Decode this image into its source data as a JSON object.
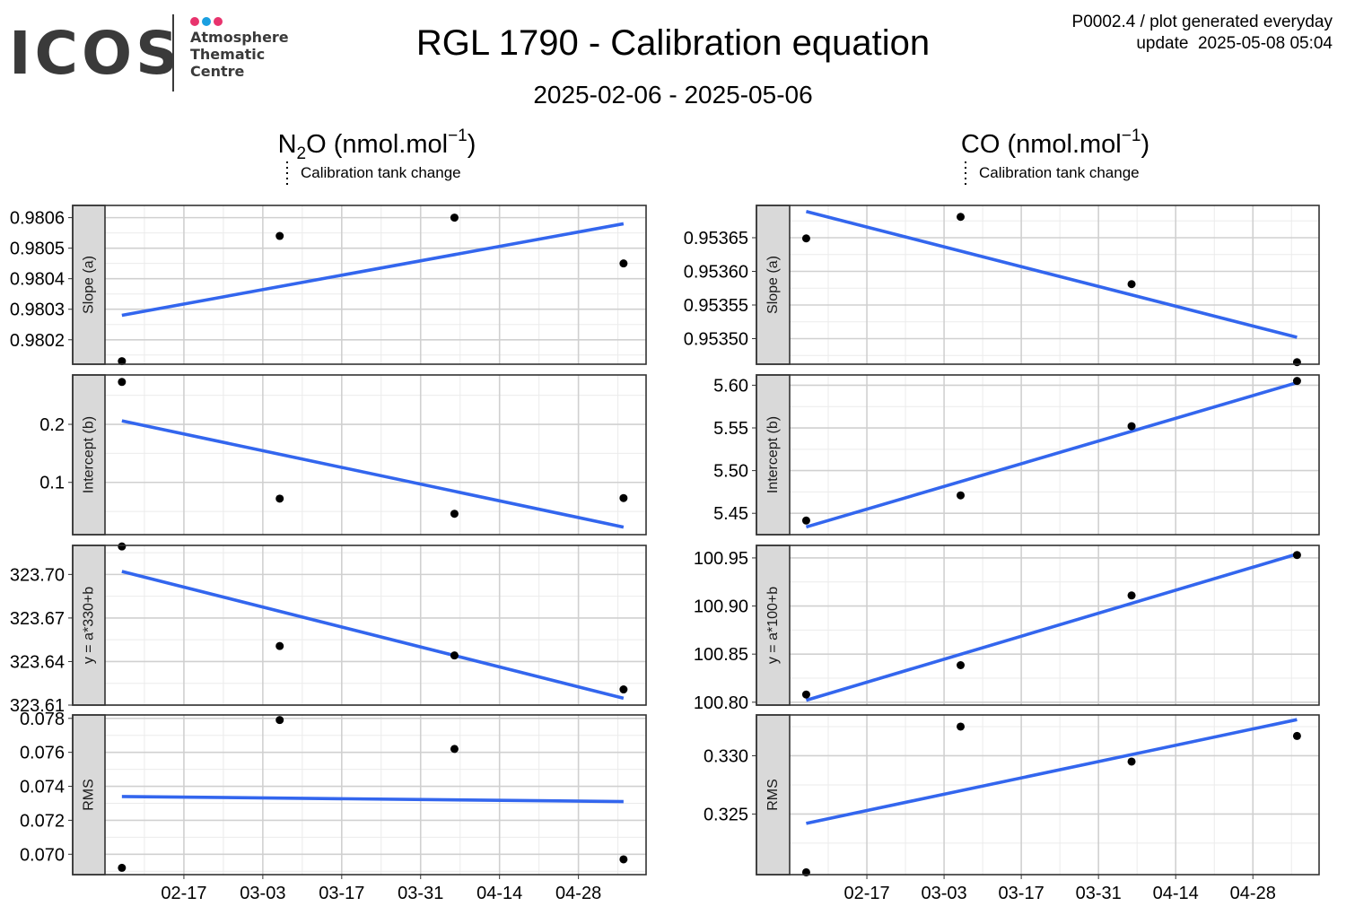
{
  "logo": {
    "text": "ICOS",
    "lines": [
      "Atmosphere",
      "Thematic",
      "Centre"
    ],
    "dot_colors": [
      "#e8336d",
      "#1a9fe0",
      "#e8336d"
    ]
  },
  "header": {
    "title": "RGL 1790 - Calibration equation",
    "subtitle": "2025-02-06 - 2025-05-06",
    "code": "P0002.4 / plot generated everyday",
    "update": "update  2025-05-08 05:04"
  },
  "colors": {
    "fit": "#3366ee",
    "point": "#000000",
    "strip": "#d9d9d9"
  },
  "chart_data": [
    {
      "type": "scatter",
      "species": "N₂O",
      "unit_text": "(nmol.mol",
      "unit_sup": "−1",
      "unit_close": ")",
      "legend": "Calibration tank change",
      "xlim": [
        "2025-02-03",
        "2025-05-10"
      ],
      "x_ticks": [
        "2025-02-17",
        "2025-03-03",
        "2025-03-17",
        "2025-03-31",
        "2025-04-14",
        "2025-04-28"
      ],
      "x_tick_labels": [
        "02-17",
        "03-03",
        "03-17",
        "03-31",
        "04-14",
        "04-28"
      ],
      "panels": [
        {
          "strip": "Slope (a)",
          "ylim": [
            0.98012,
            0.98064
          ],
          "yticks": [
            0.9802,
            0.9803,
            0.9804,
            0.9805,
            0.9806
          ],
          "ytick_labels": [
            "0.9802",
            "0.9803",
            "0.9804",
            "0.9805",
            "0.9806"
          ],
          "points": [
            [
              "2025-02-06",
              0.98013
            ],
            [
              "2025-03-06",
              0.98054
            ],
            [
              "2025-04-06",
              0.9806
            ],
            [
              "2025-05-06",
              0.98045
            ]
          ],
          "fit": [
            [
              "2025-02-06",
              0.98028
            ],
            [
              "2025-05-06",
              0.98058
            ]
          ]
        },
        {
          "strip": "Intercept (b)",
          "ylim": [
            0.01,
            0.285
          ],
          "yticks": [
            0.1,
            0.2
          ],
          "ytick_labels": [
            "0.1",
            "0.2"
          ],
          "points": [
            [
              "2025-02-06",
              0.273
            ],
            [
              "2025-03-06",
              0.072
            ],
            [
              "2025-04-06",
              0.046
            ],
            [
              "2025-05-06",
              0.073
            ]
          ],
          "fit": [
            [
              "2025-02-06",
              0.206
            ],
            [
              "2025-05-06",
              0.023
            ]
          ]
        },
        {
          "strip": "y = a*330+b",
          "ylim": [
            323.61,
            323.72
          ],
          "yticks": [
            323.61,
            323.64,
            323.67,
            323.7
          ],
          "ytick_labels": [
            "323.61",
            "323.64",
            "323.67",
            "323.70"
          ],
          "points": [
            [
              "2025-02-06",
              323.7193
            ],
            [
              "2025-03-06",
              323.6507
            ],
            [
              "2025-04-06",
              323.6442
            ],
            [
              "2025-05-06",
              323.6208
            ]
          ],
          "fit": [
            [
              "2025-02-06",
              323.7021
            ],
            [
              "2025-05-06",
              323.6147
            ]
          ]
        },
        {
          "strip": "RMS",
          "ylim": [
            0.0688,
            0.0782
          ],
          "yticks": [
            0.07,
            0.072,
            0.074,
            0.076,
            0.078
          ],
          "ytick_labels": [
            "0.070",
            "0.072",
            "0.074",
            "0.076",
            "0.078"
          ],
          "points": [
            [
              "2025-02-06",
              0.0692
            ],
            [
              "2025-03-06",
              0.0779
            ],
            [
              "2025-04-06",
              0.0762
            ],
            [
              "2025-05-06",
              0.0697
            ]
          ],
          "fit": [
            [
              "2025-02-06",
              0.0734
            ],
            [
              "2025-05-06",
              0.0731
            ]
          ]
        }
      ]
    },
    {
      "type": "scatter",
      "species": "CO",
      "unit_text": "(nmol.mol",
      "unit_sup": "−1",
      "unit_close": ")",
      "legend": "Calibration tank change",
      "xlim": [
        "2025-02-03",
        "2025-05-10"
      ],
      "x_ticks": [
        "2025-02-17",
        "2025-03-03",
        "2025-03-17",
        "2025-03-31",
        "2025-04-14",
        "2025-04-28"
      ],
      "x_tick_labels": [
        "02-17",
        "03-03",
        "03-17",
        "03-31",
        "04-14",
        "04-28"
      ],
      "panels": [
        {
          "strip": "Slope (a)",
          "ylim": [
            0.953462,
            0.953698
          ],
          "yticks": [
            0.9535,
            0.95355,
            0.9536,
            0.95365
          ],
          "ytick_labels": [
            "0.95350",
            "0.95355",
            "0.95360",
            "0.95365"
          ],
          "points": [
            [
              "2025-02-06",
              0.953649
            ],
            [
              "2025-03-06",
              0.953681
            ],
            [
              "2025-04-06",
              0.953581
            ],
            [
              "2025-05-06",
              0.953465
            ]
          ],
          "fit": [
            [
              "2025-02-06",
              0.953689
            ],
            [
              "2025-05-06",
              0.953502
            ]
          ]
        },
        {
          "strip": "Intercept (b)",
          "ylim": [
            5.425,
            5.612
          ],
          "yticks": [
            5.45,
            5.5,
            5.55,
            5.6
          ],
          "ytick_labels": [
            "5.45",
            "5.50",
            "5.55",
            "5.60"
          ],
          "points": [
            [
              "2025-02-06",
              5.4415
            ],
            [
              "2025-03-06",
              5.471
            ],
            [
              "2025-04-06",
              5.552
            ],
            [
              "2025-05-06",
              5.605
            ]
          ],
          "fit": [
            [
              "2025-02-06",
              5.434
            ],
            [
              "2025-05-06",
              5.603
            ]
          ]
        },
        {
          "strip": "y = a*100+b",
          "ylim": [
            100.797,
            100.963
          ],
          "yticks": [
            100.8,
            100.85,
            100.9,
            100.95
          ],
          "ytick_labels": [
            "100.80",
            "100.85",
            "100.90",
            "100.95"
          ],
          "points": [
            [
              "2025-02-06",
              100.808
            ],
            [
              "2025-03-06",
              100.8385
            ],
            [
              "2025-04-06",
              100.911
            ],
            [
              "2025-05-06",
              100.953
            ]
          ],
          "fit": [
            [
              "2025-02-06",
              100.802
            ],
            [
              "2025-05-06",
              100.954
            ]
          ]
        },
        {
          "strip": "RMS",
          "ylim": [
            0.3198,
            0.3335
          ],
          "yticks": [
            0.325,
            0.33
          ],
          "ytick_labels": [
            "0.325",
            "0.330"
          ],
          "points": [
            [
              "2025-02-06",
              0.32
            ],
            [
              "2025-03-06",
              0.3325
            ],
            [
              "2025-04-06",
              0.3295
            ],
            [
              "2025-05-06",
              0.3317
            ]
          ],
          "fit": [
            [
              "2025-02-06",
              0.3242
            ],
            [
              "2025-05-06",
              0.3331
            ]
          ]
        }
      ]
    }
  ]
}
